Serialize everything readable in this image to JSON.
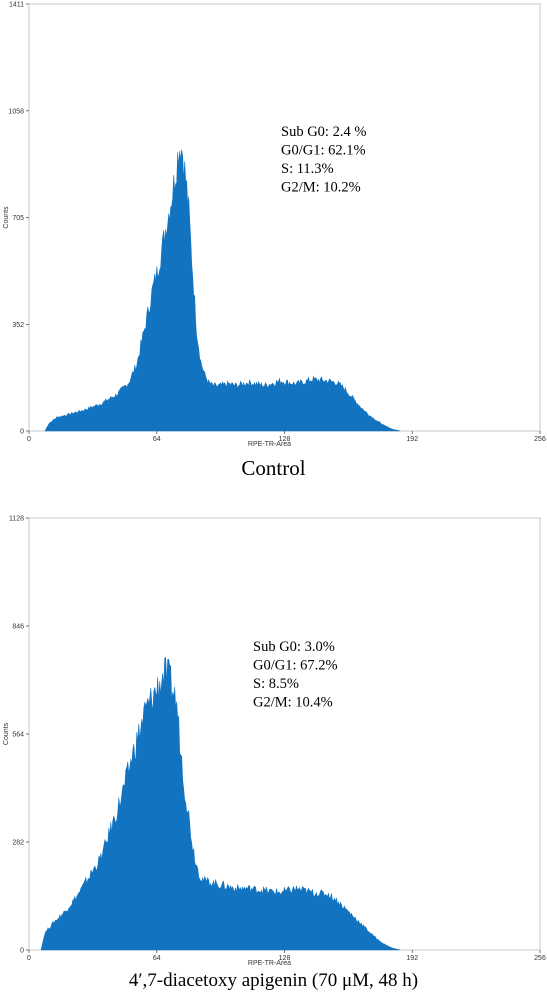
{
  "chart_data": [
    {
      "type": "area",
      "title": "Control",
      "xlabel": "RPE-TR-Area",
      "ylabel": "Counts",
      "xlim": [
        0,
        256
      ],
      "ylim": [
        0,
        1411
      ],
      "x_ticks": [
        "0",
        "64",
        "128",
        "192",
        "256"
      ],
      "y_ticks": [
        "0",
        "352",
        "705",
        "1058",
        "1411"
      ],
      "color": "#1273c0",
      "annotations": [
        "Sub G0: 2.4 %",
        "G0/G1: 62.1%",
        "S: 11.3%",
        "G2/M: 10.2%"
      ],
      "series": [
        {
          "x": [
            8,
            10,
            14,
            20,
            28,
            36,
            44,
            50,
            54,
            58,
            62,
            64,
            66,
            68,
            70,
            72,
            74,
            75,
            76,
            77,
            78,
            79,
            80,
            82,
            84,
            86,
            88,
            90,
            92,
            94,
            96,
            100,
            104,
            110,
            118,
            126,
            134,
            142,
            150,
            154,
            158,
            162,
            166,
            170,
            174,
            178,
            182,
            186
          ],
          "y": [
            0,
            25,
            45,
            55,
            70,
            90,
            120,
            160,
            220,
            340,
            470,
            520,
            580,
            650,
            720,
            790,
            880,
            930,
            945,
            920,
            860,
            800,
            730,
            520,
            330,
            230,
            185,
            160,
            150,
            148,
            150,
            155,
            150,
            160,
            150,
            165,
            155,
            170,
            165,
            160,
            140,
            110,
            80,
            55,
            35,
            18,
            6,
            0
          ]
        }
      ]
    },
    {
      "type": "area",
      "title": "4′,7-diacetoxy apigenin (70 μM, 48 h)",
      "xlabel": "RPE-TR-Area",
      "ylabel": "Counts",
      "xlim": [
        0,
        256
      ],
      "ylim": [
        0,
        1128
      ],
      "x_ticks": [
        "0",
        "64",
        "128",
        "192",
        "256"
      ],
      "y_ticks": [
        "0",
        "282",
        "564",
        "846",
        "1128"
      ],
      "color": "#1273c0",
      "annotations": [
        "Sub G0: 3.0%",
        "G0/G1: 67.2%",
        "S: 8.5%",
        "G2/M: 10.4%"
      ],
      "series": [
        {
          "x": [
            6,
            8,
            12,
            18,
            24,
            30,
            36,
            40,
            44,
            48,
            52,
            56,
            58,
            60,
            62,
            64,
            66,
            68,
            70,
            72,
            74,
            76,
            78,
            80,
            82,
            84,
            86,
            88,
            92,
            96,
            100,
            104,
            110,
            118,
            126,
            134,
            142,
            150,
            154,
            158,
            162,
            166,
            170,
            174,
            178,
            182,
            186
          ],
          "y": [
            0,
            45,
            70,
            100,
            140,
            190,
            240,
            300,
            360,
            430,
            510,
            580,
            620,
            640,
            660,
            680,
            700,
            720,
            710,
            680,
            640,
            520,
            420,
            350,
            270,
            220,
            190,
            180,
            175,
            170,
            165,
            160,
            160,
            155,
            150,
            160,
            150,
            145,
            130,
            110,
            90,
            70,
            50,
            30,
            15,
            5,
            0
          ]
        }
      ]
    }
  ]
}
